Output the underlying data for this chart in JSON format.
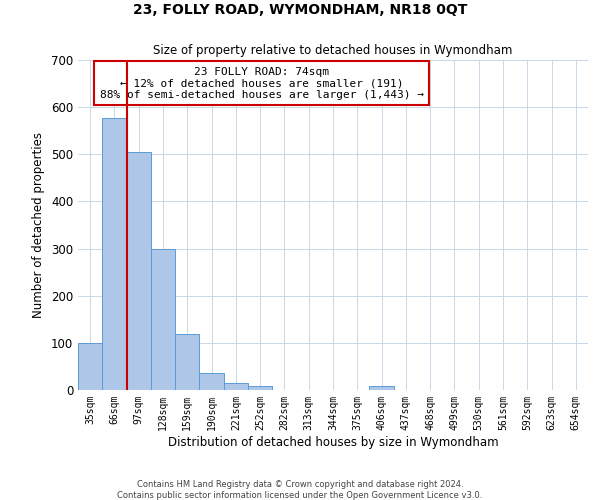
{
  "title": "23, FOLLY ROAD, WYMONDHAM, NR18 0QT",
  "subtitle": "Size of property relative to detached houses in Wymondham",
  "xlabel": "Distribution of detached houses by size in Wymondham",
  "ylabel": "Number of detached properties",
  "bar_labels": [
    "35sqm",
    "66sqm",
    "97sqm",
    "128sqm",
    "159sqm",
    "190sqm",
    "221sqm",
    "252sqm",
    "282sqm",
    "313sqm",
    "344sqm",
    "375sqm",
    "406sqm",
    "437sqm",
    "468sqm",
    "499sqm",
    "530sqm",
    "561sqm",
    "592sqm",
    "623sqm",
    "654sqm"
  ],
  "bar_values": [
    100,
    578,
    505,
    300,
    118,
    37,
    15,
    8,
    0,
    0,
    0,
    0,
    8,
    0,
    0,
    0,
    0,
    0,
    0,
    0,
    0
  ],
  "bar_color": "#aec6e8",
  "bar_edge_color": "#5b9bd5",
  "ylim": [
    0,
    700
  ],
  "yticks": [
    0,
    100,
    200,
    300,
    400,
    500,
    600,
    700
  ],
  "vline_color": "#cc0000",
  "annotation_text": "23 FOLLY ROAD: 74sqm\n← 12% of detached houses are smaller (191)\n88% of semi-detached houses are larger (1,443) →",
  "annotation_box_color": "#ffffff",
  "annotation_box_edge": "#cc0000",
  "footnote": "Contains HM Land Registry data © Crown copyright and database right 2024.\nContains public sector information licensed under the Open Government Licence v3.0.",
  "background_color": "#ffffff",
  "grid_color": "#c8d8e8"
}
